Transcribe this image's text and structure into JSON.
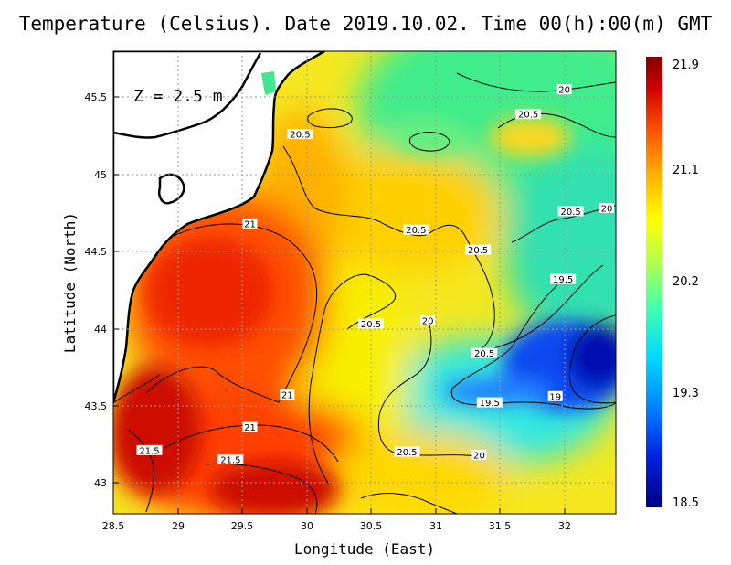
{
  "title": "Temperature (Celsius). Date 2019.10.02. Time 00(h):00(m) GMT",
  "depth_label": "Z = 2.5 m",
  "axes": {
    "xlabel": "Longitude (East)",
    "ylabel": "Latitude (North)",
    "x_ticks": [
      "28.5",
      "29",
      "29.5",
      "30",
      "30.5",
      "31",
      "31.5",
      "32"
    ],
    "y_ticks": [
      "45.5",
      "45",
      "44.5",
      "44",
      "43.5",
      "43"
    ],
    "x_range": [
      28.5,
      32.4
    ],
    "y_range": [
      42.8,
      45.8
    ]
  },
  "colorbar": {
    "ticks": [
      "21.9",
      "21.1",
      "20.2",
      "19.3",
      "18.5"
    ],
    "min": 18.5,
    "max": 21.9,
    "colors": [
      "#00007f",
      "#0040ff",
      "#00c8ff",
      "#40ffb0",
      "#c8ff40",
      "#ffff00",
      "#ffb000",
      "#ff4000",
      "#c00000",
      "#800000"
    ]
  },
  "contour_labels": [
    {
      "text": "20",
      "lon": 32.0,
      "lat": 45.55
    },
    {
      "text": "20.5",
      "lon": 31.72,
      "lat": 45.39
    },
    {
      "text": "20.5",
      "lon": 29.95,
      "lat": 45.26
    },
    {
      "text": "20.5",
      "lon": 32.05,
      "lat": 44.76
    },
    {
      "text": "20",
      "lon": 32.35,
      "lat": 44.78
    },
    {
      "text": "21",
      "lon": 29.56,
      "lat": 44.68
    },
    {
      "text": "20.5",
      "lon": 30.85,
      "lat": 44.64
    },
    {
      "text": "20.5",
      "lon": 31.33,
      "lat": 44.51
    },
    {
      "text": "19.5",
      "lon": 31.99,
      "lat": 44.32
    },
    {
      "text": "20.5",
      "lon": 30.5,
      "lat": 44.03
    },
    {
      "text": "20",
      "lon": 30.94,
      "lat": 44.05
    },
    {
      "text": "20.5",
      "lon": 31.38,
      "lat": 43.84
    },
    {
      "text": "21",
      "lon": 29.85,
      "lat": 43.57
    },
    {
      "text": "19.5",
      "lon": 31.42,
      "lat": 43.52
    },
    {
      "text": "19",
      "lon": 31.93,
      "lat": 43.56
    },
    {
      "text": "21",
      "lon": 29.56,
      "lat": 43.36
    },
    {
      "text": "21.5",
      "lon": 28.78,
      "lat": 43.21
    },
    {
      "text": "20.5",
      "lon": 30.78,
      "lat": 43.2
    },
    {
      "text": "20",
      "lon": 31.34,
      "lat": 43.18
    },
    {
      "text": "21.5",
      "lon": 29.41,
      "lat": 43.15
    }
  ]
}
